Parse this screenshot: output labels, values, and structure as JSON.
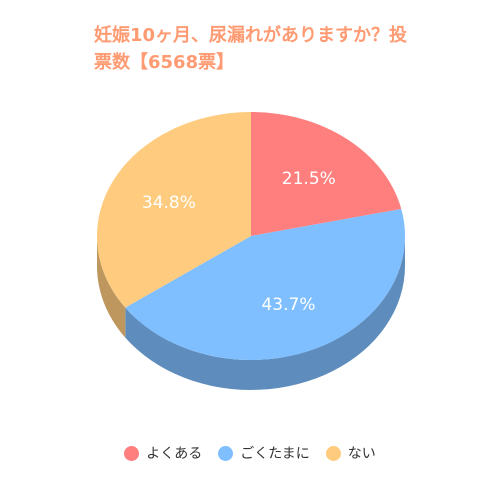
{
  "chart_data": {
    "type": "pie",
    "title": "妊娠10ヶ月、尿漏れがありますか？投票数【6568票】",
    "categories": [
      "よくある",
      "ごくたまに",
      "ない"
    ],
    "values": [
      21.5,
      43.7,
      34.8
    ],
    "data_labels": [
      "21.5%",
      "43.7%",
      "34.8%"
    ],
    "colors": [
      "#ff7f7f",
      "#7fbfff",
      "#ffcc7f"
    ],
    "legend_position": "bottom",
    "style": "3d"
  },
  "colors": {
    "title": "#ff9b73",
    "legend_text": "#333333"
  }
}
